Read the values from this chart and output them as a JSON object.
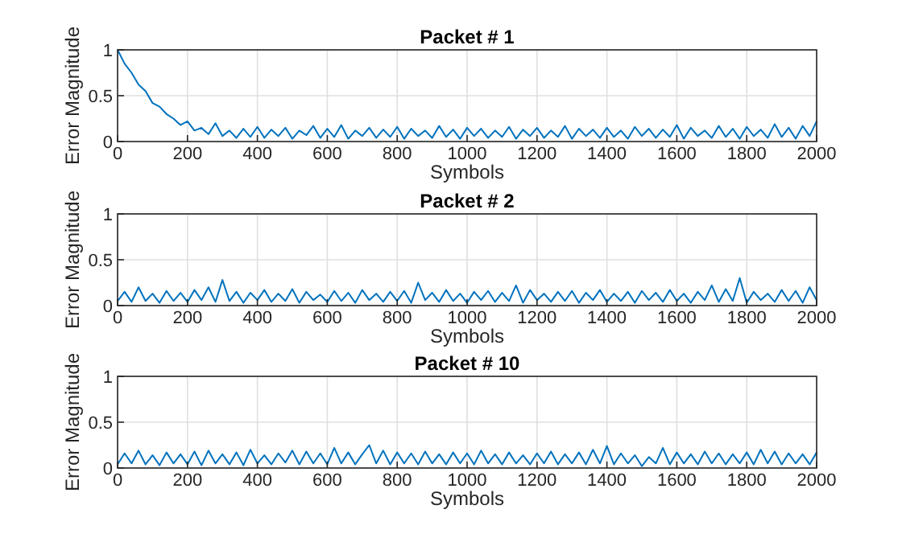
{
  "chart_data": [
    {
      "type": "line",
      "title": "Packet # 1",
      "xlabel": "Symbols",
      "ylabel": "Error Magnitude",
      "xlim": [
        0,
        2000
      ],
      "ylim": [
        0,
        1
      ],
      "xticks": [
        0,
        200,
        400,
        600,
        800,
        1000,
        1200,
        1400,
        1600,
        1800,
        2000
      ],
      "yticks": [
        0,
        0.5,
        1
      ],
      "grid": true,
      "x": [
        0,
        20,
        40,
        60,
        80,
        100,
        120,
        140,
        160,
        180,
        200,
        220,
        240,
        260,
        280,
        300,
        320,
        340,
        360,
        380,
        400,
        420,
        440,
        460,
        480,
        500,
        520,
        540,
        560,
        580,
        600,
        620,
        640,
        660,
        680,
        700,
        720,
        740,
        760,
        780,
        800,
        820,
        840,
        860,
        880,
        900,
        920,
        940,
        960,
        980,
        1000,
        1020,
        1040,
        1060,
        1080,
        1100,
        1120,
        1140,
        1160,
        1180,
        1200,
        1220,
        1240,
        1260,
        1280,
        1300,
        1320,
        1340,
        1360,
        1380,
        1400,
        1420,
        1440,
        1460,
        1480,
        1500,
        1520,
        1540,
        1560,
        1580,
        1600,
        1620,
        1640,
        1660,
        1680,
        1700,
        1720,
        1740,
        1760,
        1780,
        1800,
        1820,
        1840,
        1860,
        1880,
        1900,
        1920,
        1940,
        1960,
        1980,
        2000
      ],
      "series": [
        {
          "color": "#0072bd",
          "values": [
            1.0,
            0.85,
            0.75,
            0.62,
            0.55,
            0.42,
            0.38,
            0.3,
            0.25,
            0.18,
            0.22,
            0.12,
            0.15,
            0.08,
            0.2,
            0.06,
            0.12,
            0.04,
            0.14,
            0.05,
            0.16,
            0.04,
            0.13,
            0.06,
            0.15,
            0.03,
            0.12,
            0.07,
            0.17,
            0.04,
            0.14,
            0.05,
            0.18,
            0.03,
            0.12,
            0.06,
            0.15,
            0.04,
            0.13,
            0.05,
            0.16,
            0.03,
            0.14,
            0.06,
            0.12,
            0.04,
            0.17,
            0.05,
            0.13,
            0.03,
            0.15,
            0.06,
            0.14,
            0.04,
            0.12,
            0.05,
            0.16,
            0.03,
            0.13,
            0.06,
            0.15,
            0.04,
            0.12,
            0.05,
            0.17,
            0.03,
            0.14,
            0.06,
            0.13,
            0.04,
            0.15,
            0.05,
            0.12,
            0.03,
            0.16,
            0.06,
            0.14,
            0.04,
            0.13,
            0.05,
            0.18,
            0.03,
            0.15,
            0.06,
            0.12,
            0.04,
            0.17,
            0.05,
            0.14,
            0.03,
            0.16,
            0.06,
            0.13,
            0.04,
            0.19,
            0.05,
            0.15,
            0.03,
            0.17,
            0.06,
            0.22
          ]
        }
      ]
    },
    {
      "type": "line",
      "title": "Packet # 2",
      "xlabel": "Symbols",
      "ylabel": "Error Magnitude",
      "xlim": [
        0,
        2000
      ],
      "ylim": [
        0,
        1
      ],
      "xticks": [
        0,
        200,
        400,
        600,
        800,
        1000,
        1200,
        1400,
        1600,
        1800,
        2000
      ],
      "yticks": [
        0,
        0.5,
        1
      ],
      "grid": true,
      "x": [
        0,
        20,
        40,
        60,
        80,
        100,
        120,
        140,
        160,
        180,
        200,
        220,
        240,
        260,
        280,
        300,
        320,
        340,
        360,
        380,
        400,
        420,
        440,
        460,
        480,
        500,
        520,
        540,
        560,
        580,
        600,
        620,
        640,
        660,
        680,
        700,
        720,
        740,
        760,
        780,
        800,
        820,
        840,
        860,
        880,
        900,
        920,
        940,
        960,
        980,
        1000,
        1020,
        1040,
        1060,
        1080,
        1100,
        1120,
        1140,
        1160,
        1180,
        1200,
        1220,
        1240,
        1260,
        1280,
        1300,
        1320,
        1340,
        1360,
        1380,
        1400,
        1420,
        1440,
        1460,
        1480,
        1500,
        1520,
        1540,
        1560,
        1580,
        1600,
        1620,
        1640,
        1660,
        1680,
        1700,
        1720,
        1740,
        1760,
        1780,
        1800,
        1820,
        1840,
        1860,
        1880,
        1900,
        1920,
        1940,
        1960,
        1980,
        2000
      ],
      "series": [
        {
          "color": "#0072bd",
          "values": [
            0.05,
            0.15,
            0.04,
            0.2,
            0.05,
            0.13,
            0.03,
            0.16,
            0.05,
            0.14,
            0.04,
            0.17,
            0.06,
            0.2,
            0.04,
            0.28,
            0.05,
            0.15,
            0.03,
            0.14,
            0.06,
            0.17,
            0.04,
            0.13,
            0.05,
            0.18,
            0.03,
            0.15,
            0.06,
            0.12,
            0.04,
            0.16,
            0.05,
            0.14,
            0.03,
            0.17,
            0.06,
            0.13,
            0.04,
            0.15,
            0.05,
            0.16,
            0.03,
            0.25,
            0.06,
            0.14,
            0.04,
            0.17,
            0.05,
            0.13,
            0.03,
            0.15,
            0.06,
            0.16,
            0.04,
            0.14,
            0.05,
            0.22,
            0.03,
            0.17,
            0.06,
            0.13,
            0.04,
            0.15,
            0.05,
            0.16,
            0.03,
            0.14,
            0.06,
            0.17,
            0.04,
            0.13,
            0.05,
            0.15,
            0.03,
            0.16,
            0.06,
            0.14,
            0.04,
            0.17,
            0.05,
            0.13,
            0.03,
            0.15,
            0.06,
            0.22,
            0.04,
            0.18,
            0.05,
            0.3,
            0.03,
            0.15,
            0.06,
            0.13,
            0.04,
            0.17,
            0.05,
            0.16,
            0.03,
            0.2,
            0.06
          ]
        }
      ]
    },
    {
      "type": "line",
      "title": "Packet # 10",
      "xlabel": "Symbols",
      "ylabel": "Error Magnitude",
      "xlim": [
        0,
        2000
      ],
      "ylim": [
        0,
        1
      ],
      "xticks": [
        0,
        200,
        400,
        600,
        800,
        1000,
        1200,
        1400,
        1600,
        1800,
        2000
      ],
      "yticks": [
        0,
        0.5,
        1
      ],
      "grid": true,
      "x": [
        0,
        20,
        40,
        60,
        80,
        100,
        120,
        140,
        160,
        180,
        200,
        220,
        240,
        260,
        280,
        300,
        320,
        340,
        360,
        380,
        400,
        420,
        440,
        460,
        480,
        500,
        520,
        540,
        560,
        580,
        600,
        620,
        640,
        660,
        680,
        700,
        720,
        740,
        760,
        780,
        800,
        820,
        840,
        860,
        880,
        900,
        920,
        940,
        960,
        980,
        1000,
        1020,
        1040,
        1060,
        1080,
        1100,
        1120,
        1140,
        1160,
        1180,
        1200,
        1220,
        1240,
        1260,
        1280,
        1300,
        1320,
        1340,
        1360,
        1380,
        1400,
        1420,
        1440,
        1460,
        1480,
        1500,
        1520,
        1540,
        1560,
        1580,
        1600,
        1620,
        1640,
        1660,
        1680,
        1700,
        1720,
        1740,
        1760,
        1780,
        1800,
        1820,
        1840,
        1860,
        1880,
        1900,
        1920,
        1940,
        1960,
        1980,
        2000
      ],
      "series": [
        {
          "color": "#0072bd",
          "values": [
            0.04,
            0.16,
            0.05,
            0.19,
            0.04,
            0.14,
            0.03,
            0.17,
            0.05,
            0.15,
            0.04,
            0.18,
            0.03,
            0.19,
            0.05,
            0.15,
            0.04,
            0.17,
            0.03,
            0.2,
            0.05,
            0.14,
            0.04,
            0.16,
            0.06,
            0.19,
            0.04,
            0.18,
            0.05,
            0.16,
            0.04,
            0.22,
            0.05,
            0.17,
            0.04,
            0.15,
            0.25,
            0.05,
            0.19,
            0.04,
            0.17,
            0.05,
            0.16,
            0.04,
            0.18,
            0.05,
            0.15,
            0.04,
            0.17,
            0.05,
            0.16,
            0.04,
            0.19,
            0.05,
            0.15,
            0.04,
            0.17,
            0.05,
            0.14,
            0.04,
            0.16,
            0.05,
            0.18,
            0.04,
            0.15,
            0.05,
            0.17,
            0.04,
            0.2,
            0.05,
            0.24,
            0.04,
            0.16,
            0.05,
            0.14,
            0.02,
            0.12,
            0.05,
            0.22,
            0.04,
            0.17,
            0.05,
            0.15,
            0.04,
            0.18,
            0.05,
            0.16,
            0.04,
            0.15,
            0.05,
            0.17,
            0.04,
            0.2,
            0.05,
            0.18,
            0.04,
            0.16,
            0.05,
            0.15,
            0.04,
            0.17
          ]
        }
      ]
    }
  ]
}
